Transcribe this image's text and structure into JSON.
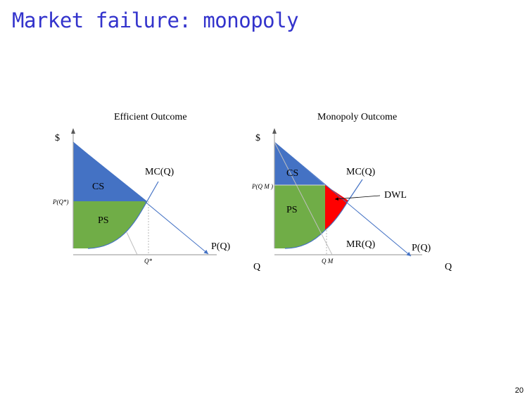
{
  "slide": {
    "title": "Market failure: monopoly",
    "page_number": "20"
  },
  "left_diagram": {
    "title": "Efficient Outcome",
    "y_axis_label": "$",
    "x_axis_label": "Q",
    "mc_label": "MC(Q)",
    "demand_label": "P(Q)",
    "cs_label": "CS",
    "ps_label": "PS",
    "price_tick": "P(Q*)",
    "quantity_tick": "Q*"
  },
  "right_diagram": {
    "title": "Monopoly Outcome",
    "y_axis_label": "$",
    "x_axis_label": "Q",
    "mc_label": "MC(Q)",
    "mr_label": "MR(Q)",
    "demand_label": "P(Q)",
    "cs_label": "CS",
    "ps_label": "PS",
    "dwl_label": "DWL",
    "price_tick": "P(Q M )",
    "quantity_tick": "Q M"
  },
  "colors": {
    "cs": "#4472c4",
    "ps": "#70ad47",
    "dwl": "#ff0000",
    "title": "#3333cc"
  }
}
